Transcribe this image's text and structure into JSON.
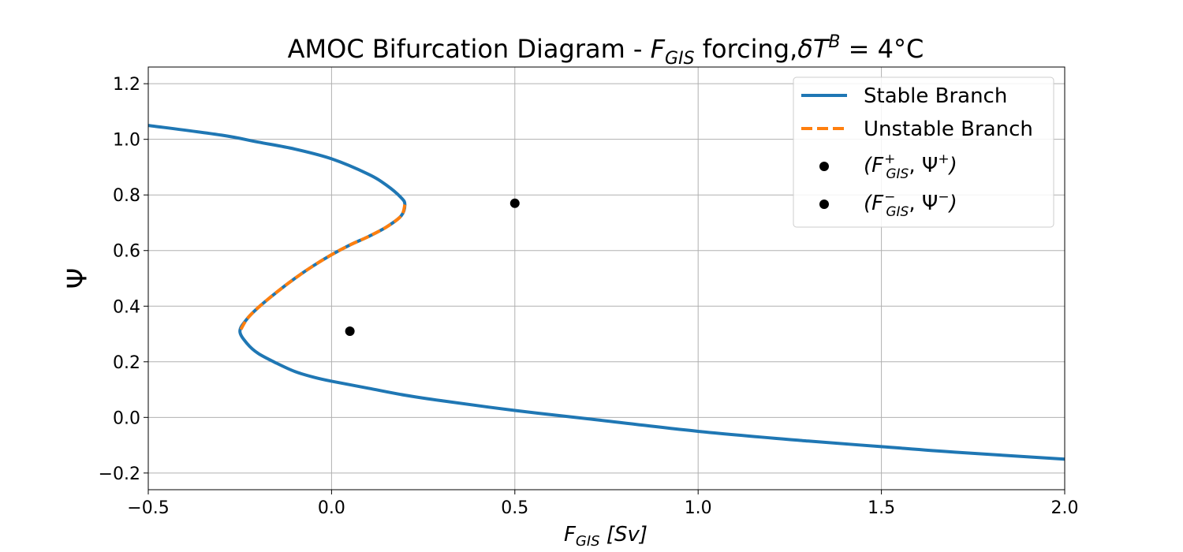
{
  "colors": {
    "stable": "#1f77b4",
    "unstable": "#ff7f0e",
    "points": "#000000",
    "grid": "#b0b0b0"
  },
  "chart_data": {
    "type": "line",
    "title": {
      "prefix": "AMOC Bifurcation Diagram - ",
      "var": "F",
      "var_sub": "GIS",
      "middle": " forcing,",
      "delta": "δ",
      "t": "T",
      "t_sup": "B",
      "equals": " = 4°C"
    },
    "xlabel": {
      "var": "F",
      "sub": "GIS",
      "unit": " [Sv]"
    },
    "ylabel": "Ψ",
    "xlim": [
      -0.5,
      2.0
    ],
    "ylim": [
      -0.26,
      1.26
    ],
    "xticks": [
      -0.5,
      0.0,
      0.5,
      1.0,
      1.5,
      2.0
    ],
    "xtick_labels": [
      "−0.5",
      "0.0",
      "0.5",
      "1.0",
      "1.5",
      "2.0"
    ],
    "yticks": [
      -0.2,
      0.0,
      0.2,
      0.4,
      0.6,
      0.8,
      1.0,
      1.2
    ],
    "ytick_labels": [
      "−0.2",
      "0.0",
      "0.2",
      "0.4",
      "0.6",
      "0.8",
      "1.0",
      "1.2"
    ],
    "grid": true,
    "legend_position": "top-right",
    "series": [
      {
        "name": "Stable Branch",
        "style": "solid",
        "x": [
          -0.5,
          -0.3,
          -0.2,
          -0.1,
          0.0,
          0.1,
          0.15,
          0.19,
          0.2,
          0.19,
          0.15,
          0.1,
          0.05,
          0.0,
          -0.05,
          -0.1,
          -0.15,
          -0.2,
          -0.23,
          -0.25,
          -0.23,
          -0.2,
          -0.15,
          -0.1,
          -0.05,
          0.0,
          0.1,
          0.2,
          0.3,
          0.5,
          0.7,
          1.0,
          1.3,
          1.5,
          1.7,
          2.0
        ],
        "y": [
          1.05,
          1.015,
          0.99,
          0.965,
          0.93,
          0.875,
          0.835,
          0.79,
          0.765,
          0.725,
          0.685,
          0.65,
          0.62,
          0.585,
          0.545,
          0.5,
          0.45,
          0.395,
          0.355,
          0.31,
          0.265,
          0.23,
          0.195,
          0.165,
          0.145,
          0.13,
          0.105,
          0.08,
          0.06,
          0.025,
          -0.005,
          -0.05,
          -0.085,
          -0.105,
          -0.125,
          -0.15
        ]
      },
      {
        "name": "Unstable Branch",
        "style": "dashed",
        "x": [
          0.2,
          0.19,
          0.15,
          0.1,
          0.05,
          0.0,
          -0.05,
          -0.1,
          -0.15,
          -0.2,
          -0.23,
          -0.25
        ],
        "y": [
          0.765,
          0.725,
          0.685,
          0.65,
          0.62,
          0.585,
          0.545,
          0.5,
          0.45,
          0.395,
          0.355,
          0.31
        ]
      }
    ],
    "points": [
      {
        "legend_var": "F",
        "legend_sub": "GIS",
        "legend_sup": "+",
        "legend_psi_sup": "+",
        "x": 0.5,
        "y": 0.77
      },
      {
        "legend_var": "F",
        "legend_sub": "GIS",
        "legend_sup": "−",
        "legend_psi_sup": "−",
        "x": 0.05,
        "y": 0.31
      }
    ],
    "legend_psi": "Ψ"
  }
}
